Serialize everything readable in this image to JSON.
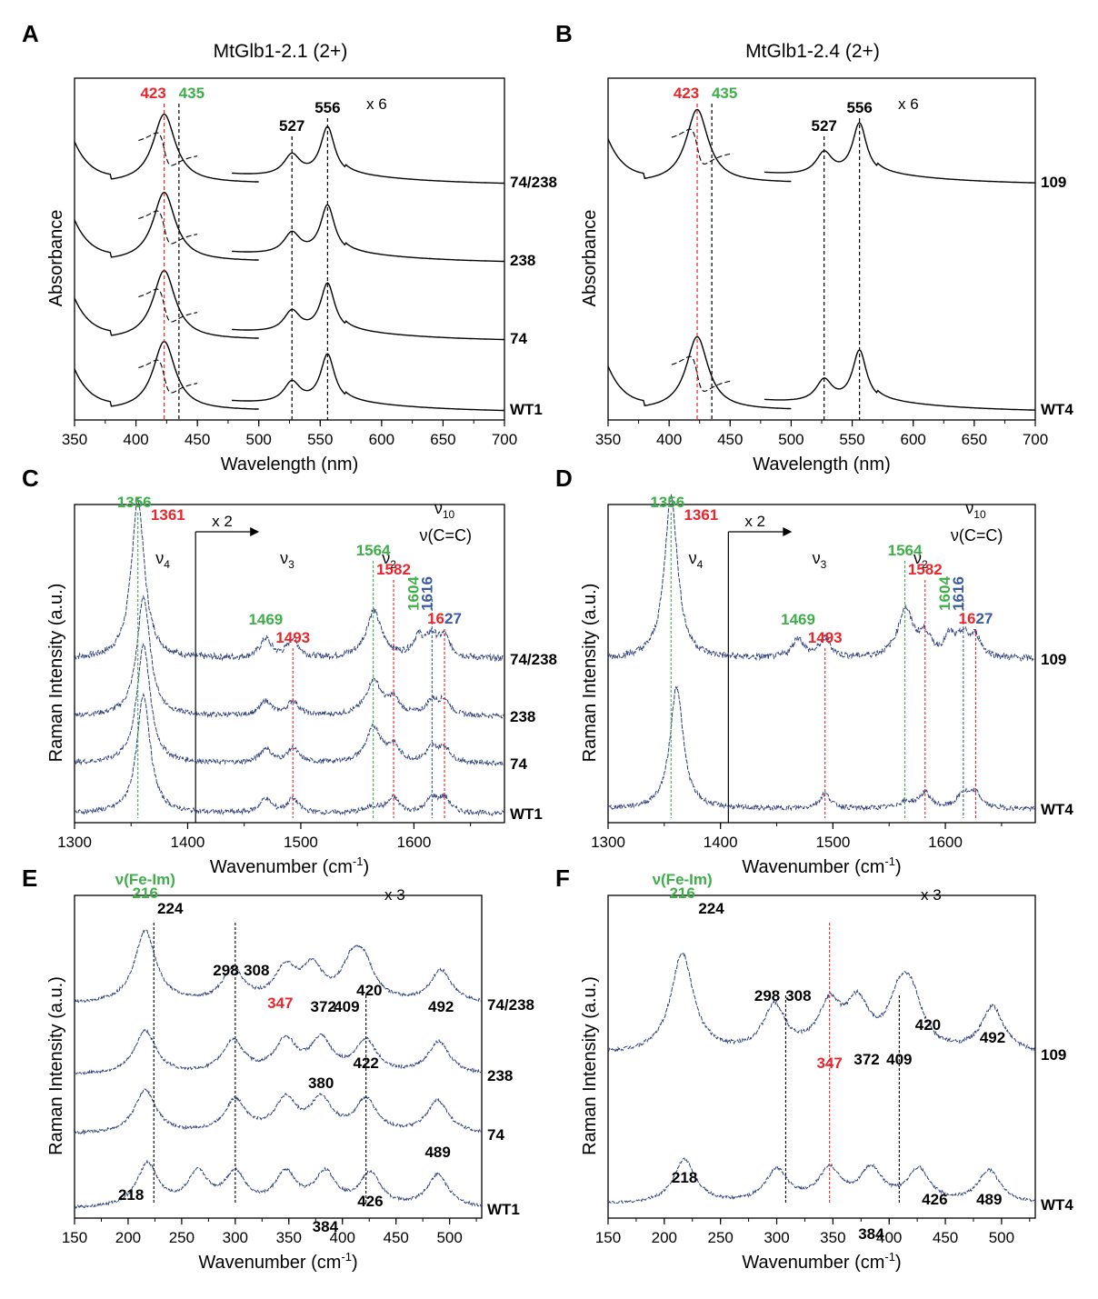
{
  "colors": {
    "red": "#e8262b",
    "green": "#3fae49",
    "blue": "#3a5aa0",
    "black": "#000000",
    "trace": "#2c3e7a"
  },
  "chart_data": [
    {
      "id": "A",
      "type": "line",
      "title": "MtGlb1-2.1 (2+)",
      "xlabel": "Wavelength (nm)",
      "ylabel": "Absorbance",
      "xlim": [
        350,
        700
      ],
      "xticks": [
        "350",
        "400",
        "450",
        "500",
        "550",
        "600",
        "650",
        "700"
      ],
      "multiplier": "x 6",
      "series": [
        {
          "name": "74/238",
          "soret": [
            423,
            435
          ],
          "q_bands": [
            527,
            556
          ]
        },
        {
          "name": "238",
          "soret": [
            423
          ],
          "q_bands": [
            527,
            556
          ]
        },
        {
          "name": "74",
          "soret": [
            423
          ],
          "q_bands": [
            527,
            556
          ]
        },
        {
          "name": "WT1",
          "soret": [
            423
          ],
          "q_bands": [
            527,
            556
          ]
        }
      ],
      "peaks": [
        {
          "label": "423",
          "x": 423,
          "color": "red"
        },
        {
          "label": "435",
          "x": 435,
          "color": "green"
        },
        {
          "label": "527",
          "x": 527,
          "color": "black"
        },
        {
          "label": "556",
          "x": 556,
          "color": "black"
        }
      ]
    },
    {
      "id": "B",
      "type": "line",
      "title": "MtGlb1-2.4 (2+)",
      "xlabel": "Wavelength (nm)",
      "ylabel": "Absorbance",
      "xlim": [
        350,
        700
      ],
      "xticks": [
        "350",
        "400",
        "450",
        "500",
        "550",
        "600",
        "650",
        "700"
      ],
      "multiplier": "x 6",
      "series": [
        {
          "name": "109",
          "soret": [
            423,
            435
          ],
          "q_bands": [
            527,
            556
          ]
        },
        {
          "name": "WT4",
          "soret": [
            423
          ],
          "q_bands": [
            527,
            556
          ]
        }
      ],
      "peaks": [
        {
          "label": "423",
          "x": 423,
          "color": "red"
        },
        {
          "label": "435",
          "x": 435,
          "color": "green"
        },
        {
          "label": "527",
          "x": 527,
          "color": "black"
        },
        {
          "label": "556",
          "x": 556,
          "color": "black"
        }
      ]
    },
    {
      "id": "C",
      "type": "line",
      "xlabel": "Wavenumber (cm⁻¹)",
      "ylabel": "Raman Intensity (a.u.)",
      "xlim": [
        1300,
        1680
      ],
      "xticks": [
        "1300",
        "1400",
        "1500",
        "1600"
      ],
      "multiplier": "x 2",
      "break_at": 1407,
      "modes": [
        {
          "sym": "ν",
          "sub": "4",
          "x": 1378
        },
        {
          "sym": "ν",
          "sub": "3",
          "x": 1488
        },
        {
          "sym": "ν",
          "sub": "2",
          "x": 1578
        },
        {
          "sym": "ν",
          "sub": "10",
          "x": 1627
        }
      ],
      "cc_label": "ν(C=C)",
      "series": [
        {
          "name": "74/238",
          "peaks": [
            1356,
            1469,
            1493,
            1564,
            1604,
            1616,
            1627
          ]
        },
        {
          "name": "238",
          "peaks": [
            1361,
            1469,
            1493,
            1564,
            1582,
            1616,
            1627
          ]
        },
        {
          "name": "74",
          "peaks": [
            1361,
            1469,
            1493,
            1564,
            1582,
            1616,
            1627
          ]
        },
        {
          "name": "WT1",
          "peaks": [
            1361,
            1469,
            1493,
            1582,
            1616,
            1627
          ]
        }
      ],
      "peaks": [
        {
          "label": "1356",
          "x": 1356,
          "color": "green"
        },
        {
          "label": "1361",
          "x": 1361,
          "color": "red"
        },
        {
          "label": "1469",
          "x": 1469,
          "color": "green"
        },
        {
          "label": "1493",
          "x": 1493,
          "color": "red"
        },
        {
          "label": "1564",
          "x": 1564,
          "color": "green"
        },
        {
          "label": "1582",
          "x": 1582,
          "color": "red"
        },
        {
          "label": "1604",
          "x": 1604,
          "color": "green"
        },
        {
          "label": "1616",
          "x": 1616,
          "color": "blue"
        },
        {
          "label": "1627",
          "x": 1627,
          "color": "split"
        }
      ]
    },
    {
      "id": "D",
      "type": "line",
      "xlabel": "Wavenumber (cm⁻¹)",
      "ylabel": "Raman Intensity (a.u.)",
      "xlim": [
        1300,
        1680
      ],
      "xticks": [
        "1300",
        "1400",
        "1500",
        "1600"
      ],
      "multiplier": "x 2",
      "break_at": 1407,
      "modes": [
        {
          "sym": "ν",
          "sub": "4",
          "x": 1378
        },
        {
          "sym": "ν",
          "sub": "3",
          "x": 1488
        },
        {
          "sym": "ν",
          "sub": "2",
          "x": 1578
        },
        {
          "sym": "ν",
          "sub": "10",
          "x": 1627
        }
      ],
      "cc_label": "ν(C=C)",
      "series": [
        {
          "name": "109",
          "peaks": [
            1356,
            1469,
            1493,
            1564,
            1582,
            1604,
            1616,
            1627
          ]
        },
        {
          "name": "WT4",
          "peaks": [
            1361,
            1493,
            1582,
            1616,
            1627
          ]
        }
      ],
      "peaks": [
        {
          "label": "1356",
          "x": 1356,
          "color": "green"
        },
        {
          "label": "1361",
          "x": 1361,
          "color": "red"
        },
        {
          "label": "1469",
          "x": 1469,
          "color": "green"
        },
        {
          "label": "1493",
          "x": 1493,
          "color": "red"
        },
        {
          "label": "1564",
          "x": 1564,
          "color": "green"
        },
        {
          "label": "1582",
          "x": 1582,
          "color": "red"
        },
        {
          "label": "1604",
          "x": 1604,
          "color": "green"
        },
        {
          "label": "1616",
          "x": 1616,
          "color": "blue"
        },
        {
          "label": "1627",
          "x": 1627,
          "color": "split"
        }
      ]
    },
    {
      "id": "E",
      "type": "line",
      "xlabel": "Wavenumber (cm⁻¹)",
      "ylabel": "Raman Intensity (a.u.)",
      "xlim": [
        150,
        530
      ],
      "xticks": [
        "150",
        "200",
        "250",
        "300",
        "350",
        "400",
        "450",
        "500"
      ],
      "multiplier": "x 3",
      "fe_im": "ν(Fe-Im)",
      "series": [
        {
          "name": "74/238",
          "peaks": [
            216,
            298,
            347,
            372,
            409,
            420,
            492
          ]
        },
        {
          "name": "238",
          "peaks": [
            216,
            298,
            347,
            380,
            422,
            490
          ]
        },
        {
          "name": "74",
          "peaks": [
            216,
            300,
            347,
            380,
            422,
            489
          ]
        },
        {
          "name": "WT1",
          "peaks": [
            218,
            265,
            300,
            347,
            384,
            426,
            489
          ]
        }
      ],
      "peaks": [
        {
          "label": "216",
          "x": 216,
          "color": "green"
        },
        {
          "label": "224",
          "x": 224,
          "color": "black"
        },
        {
          "label": "298",
          "x": 298,
          "color": "black"
        },
        {
          "label": "308",
          "x": 308,
          "color": "black"
        },
        {
          "label": "347",
          "x": 347,
          "color": "red"
        },
        {
          "label": "372",
          "x": 372,
          "color": "black"
        },
        {
          "label": "409",
          "x": 409,
          "color": "black"
        },
        {
          "label": "420",
          "x": 420,
          "color": "black"
        },
        {
          "label": "492",
          "x": 492,
          "color": "black"
        },
        {
          "label": "380",
          "x": 380,
          "color": "black"
        },
        {
          "label": "422",
          "x": 422,
          "color": "black"
        },
        {
          "label": "489",
          "x": 489,
          "color": "black"
        },
        {
          "label": "218",
          "x": 218,
          "color": "black"
        },
        {
          "label": "384",
          "x": 384,
          "color": "black"
        },
        {
          "label": "426",
          "x": 426,
          "color": "black"
        }
      ]
    },
    {
      "id": "F",
      "type": "line",
      "xlabel": "Wavenumber (cm⁻¹)",
      "ylabel": "Raman Intensity (a.u.)",
      "xlim": [
        150,
        530
      ],
      "xticks": [
        "150",
        "200",
        "250",
        "300",
        "350",
        "400",
        "450",
        "500"
      ],
      "multiplier": "x 3",
      "fe_im": "ν(Fe-Im)",
      "series": [
        {
          "name": "109",
          "peaks": [
            216,
            298,
            347,
            372,
            409,
            420,
            492
          ]
        },
        {
          "name": "WT4",
          "peaks": [
            218,
            300,
            347,
            384,
            426,
            489
          ]
        }
      ],
      "peaks": [
        {
          "label": "216",
          "x": 216,
          "color": "green"
        },
        {
          "label": "224",
          "x": 224,
          "color": "black"
        },
        {
          "label": "298",
          "x": 298,
          "color": "black"
        },
        {
          "label": "308",
          "x": 308,
          "color": "black"
        },
        {
          "label": "347",
          "x": 347,
          "color": "red"
        },
        {
          "label": "372",
          "x": 372,
          "color": "black"
        },
        {
          "label": "409",
          "x": 409,
          "color": "black"
        },
        {
          "label": "420",
          "x": 420,
          "color": "black"
        },
        {
          "label": "492",
          "x": 492,
          "color": "black"
        },
        {
          "label": "218",
          "x": 218,
          "color": "black"
        },
        {
          "label": "384",
          "x": 384,
          "color": "black"
        },
        {
          "label": "426",
          "x": 426,
          "color": "black"
        },
        {
          "label": "489",
          "x": 489,
          "color": "black"
        }
      ]
    }
  ]
}
